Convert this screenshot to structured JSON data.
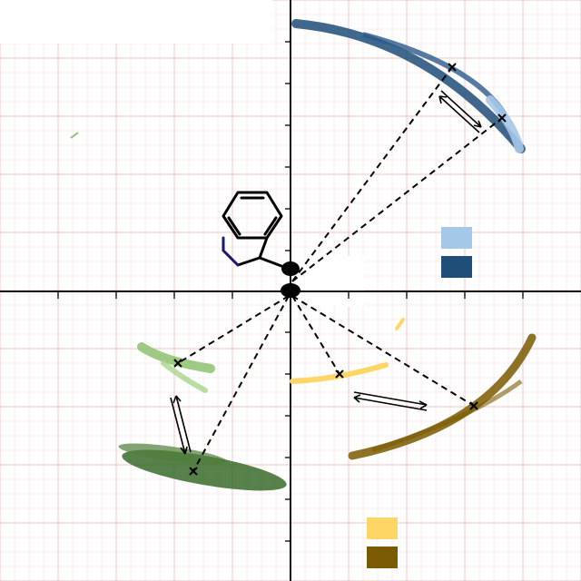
{
  "figure": {
    "description_labels": [],
    "clusters": [
      {
        "name": "blue-light",
        "color": "#a6c8e8"
      },
      {
        "name": "blue-dark",
        "color": "#1f4e79"
      },
      {
        "name": "yellow-light",
        "color": "#fdd666"
      },
      {
        "name": "yellow-dark",
        "color": "#7a5a00"
      },
      {
        "name": "green-light",
        "color": "#8dc26e"
      },
      {
        "name": "green-dark",
        "color": "#3a6b2a"
      }
    ],
    "legend": [
      {
        "name": "legend-blue-light",
        "color": "#a6c8e8"
      },
      {
        "name": "legend-blue-dark",
        "color": "#1f4e79"
      },
      {
        "name": "legend-yellow-light",
        "color": "#fdd666"
      },
      {
        "name": "legend-yellow-dark",
        "color": "#7a5a00"
      }
    ],
    "molecule": "indole-fragment",
    "icons": [
      "equilibrium-arrow-icon",
      "cross-marker-icon",
      "indole-molecule-icon"
    ]
  }
}
